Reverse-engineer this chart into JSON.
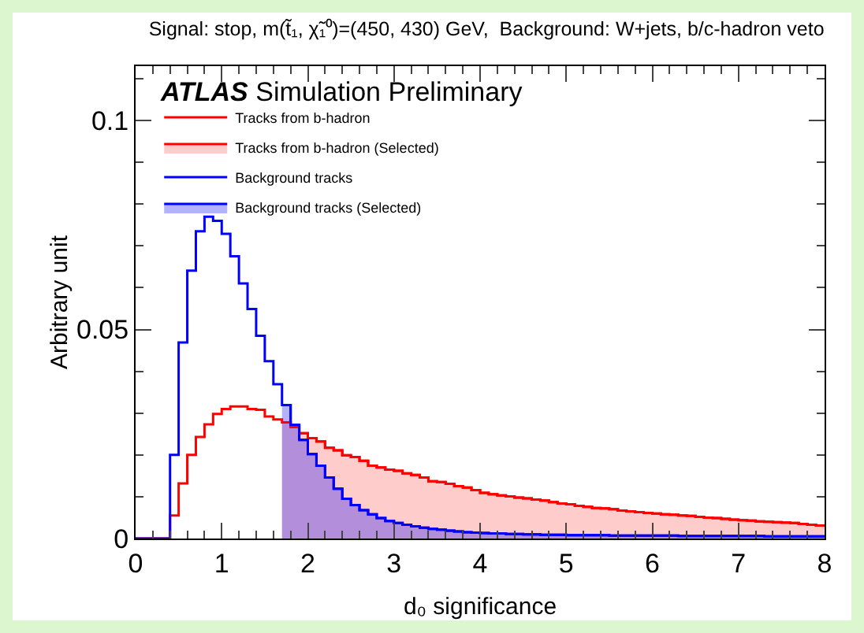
{
  "chart_data": {
    "type": "histogram",
    "title": "Signal: stop, m(t̃₁, χ̃₁⁰)=(450, 430) GeV,  Background: W+jets, b/c-hadron veto",
    "xlabel": "d₀ significance",
    "ylabel": "Arbitrary unit",
    "annotations": [
      "ATLAS Simulation Preliminary"
    ],
    "bins": [
      0,
      0.1,
      0.2,
      0.3,
      0.4,
      0.5,
      0.6,
      0.7,
      0.8,
      0.9,
      1,
      1.1,
      1.2,
      1.3,
      1.4,
      1.5,
      1.6,
      1.7,
      1.8,
      1.9,
      2,
      2.1,
      2.2,
      2.3,
      2.4,
      2.5,
      2.6,
      2.7,
      2.8,
      2.9,
      3,
      3.1,
      3.2,
      3.3,
      3.4,
      3.5,
      3.6,
      3.7,
      3.8,
      3.9,
      4,
      4.1,
      4.2,
      4.3,
      4.4,
      4.5,
      4.6,
      4.7,
      4.8,
      4.9,
      5,
      5.1,
      5.2,
      5.3,
      5.4,
      5.5,
      5.6,
      5.7,
      5.8,
      5.9,
      6,
      6.1,
      6.2,
      6.3,
      6.4,
      6.5,
      6.6,
      6.7,
      6.8,
      6.9,
      7,
      7.1,
      7.2,
      7.3,
      7.4,
      7.5,
      7.6,
      7.7,
      7.8,
      7.9,
      8
    ],
    "series": [
      {
        "name": "Tracks from b-hadron",
        "type": "histogram",
        "color": "#ff0000",
        "values": [
          0,
          0,
          0,
          0,
          0.0055,
          0.0132,
          0.02,
          0.0243,
          0.0273,
          0.0298,
          0.031,
          0.0316,
          0.0316,
          0.031,
          0.0308,
          0.0292,
          0.0285,
          0.0278,
          0.0267,
          0.0252,
          0.024,
          0.0232,
          0.0217,
          0.0211,
          0.0199,
          0.0195,
          0.0186,
          0.0174,
          0.017,
          0.0165,
          0.0162,
          0.0156,
          0.0152,
          0.0146,
          0.0137,
          0.0135,
          0.0131,
          0.0125,
          0.0122,
          0.0116,
          0.0109,
          0.0106,
          0.0103,
          0.0101,
          0.0098,
          0.0096,
          0.0093,
          0.0091,
          0.0087,
          0.0084,
          0.0082,
          0.0078,
          0.0076,
          0.0073,
          0.0072,
          0.007,
          0.0067,
          0.0065,
          0.0063,
          0.0061,
          0.006,
          0.0058,
          0.0057,
          0.0055,
          0.0054,
          0.0052,
          0.005,
          0.0049,
          0.0047,
          0.0045,
          0.0044,
          0.0043,
          0.0041,
          0.004,
          0.0039,
          0.0038,
          0.0037,
          0.0035,
          0.0033,
          0.0031
        ]
      },
      {
        "name": "Tracks from b-hadron (Selected)",
        "type": "area",
        "color": "#ff0000",
        "x": [
          1.7,
          1.8,
          1.9,
          2,
          2.1,
          2.2,
          2.3,
          2.4,
          2.5,
          2.6,
          2.7,
          2.8,
          2.9,
          3,
          3.1,
          3.2,
          3.3,
          3.4,
          3.5,
          3.6,
          3.7,
          3.8,
          3.9,
          4,
          4.1,
          4.2,
          4.3,
          4.4,
          4.5,
          4.6,
          4.7,
          4.8,
          4.9,
          5,
          5.1,
          5.2,
          5.3,
          5.4,
          5.5,
          5.6,
          5.7,
          5.8,
          5.9,
          6,
          6.1,
          6.2,
          6.3,
          6.4,
          6.5,
          6.6,
          6.7,
          6.8,
          6.9,
          7,
          7.1,
          7.2,
          7.3,
          7.4,
          7.5,
          7.6,
          7.7,
          7.8,
          7.9,
          8
        ],
        "values": [
          0.0278,
          0.0267,
          0.0252,
          0.024,
          0.0232,
          0.0217,
          0.0211,
          0.0199,
          0.0195,
          0.0186,
          0.0174,
          0.017,
          0.0165,
          0.0162,
          0.0156,
          0.0152,
          0.0146,
          0.0137,
          0.0135,
          0.0131,
          0.0125,
          0.0122,
          0.0116,
          0.0109,
          0.0106,
          0.0103,
          0.0101,
          0.0098,
          0.0096,
          0.0093,
          0.0091,
          0.0087,
          0.0084,
          0.0082,
          0.0078,
          0.0076,
          0.0073,
          0.0072,
          0.007,
          0.0067,
          0.0065,
          0.0063,
          0.0061,
          0.006,
          0.0058,
          0.0057,
          0.0055,
          0.0054,
          0.0052,
          0.005,
          0.0049,
          0.0047,
          0.0045,
          0.0044,
          0.0043,
          0.0041,
          0.004,
          0.0039,
          0.0038,
          0.0037,
          0.0035,
          0.0033,
          0.0031,
          0.0031
        ]
      },
      {
        "name": "Background tracks",
        "type": "histogram",
        "color": "#0000ff",
        "values": [
          0,
          0,
          0,
          0,
          0.02,
          0.0469,
          0.0641,
          0.0735,
          0.077,
          0.076,
          0.0729,
          0.0675,
          0.061,
          0.0549,
          0.0485,
          0.0424,
          0.0369,
          0.0319,
          0.0272,
          0.0236,
          0.0202,
          0.0174,
          0.0146,
          0.0119,
          0.0095,
          0.008,
          0.0068,
          0.0058,
          0.0049,
          0.0042,
          0.0037,
          0.0033,
          0.0029,
          0.0026,
          0.0023,
          0.0021,
          0.0019,
          0.0017,
          0.0015,
          0.0014,
          0.0013,
          0.0012,
          0.0012,
          0.0011,
          0.0011,
          0.001,
          0.001,
          0.0009,
          0.0009,
          0.0009,
          0.0008,
          0.0008,
          0.0008,
          0.0008,
          0.0008,
          0.0007,
          0.0007,
          0.0007,
          0.0007,
          0.0007,
          0.0007,
          0.0007,
          0.0007,
          0.0006,
          0.0006,
          0.0006,
          0.0006,
          0.0006,
          0.0006,
          0.0006,
          0.0006,
          0.0006,
          0.0006,
          0.0005,
          0.0005,
          0.0005,
          0.0005,
          0.0005,
          0.0005,
          0.0005
        ]
      },
      {
        "name": "Background tracks (Selected)",
        "type": "area",
        "color": "#0000ff",
        "x": [
          1.7,
          1.8,
          1.9,
          2,
          2.1,
          2.2,
          2.3,
          2.4,
          2.5,
          2.6,
          2.7,
          2.8,
          2.9,
          3,
          3.1,
          3.2,
          3.3,
          3.4,
          3.5,
          3.6,
          3.7,
          3.8,
          3.9,
          4,
          4.1,
          4.2,
          4.3,
          4.4,
          4.5,
          4.6,
          4.7,
          4.8,
          4.9,
          5,
          5.1,
          5.2,
          5.3,
          5.4,
          5.5,
          5.6,
          5.7,
          5.8,
          5.9,
          6,
          6.1,
          6.2,
          6.3,
          6.4,
          6.5,
          6.6,
          6.7,
          6.8,
          6.9,
          7,
          7.1,
          7.2,
          7.3,
          7.4,
          7.5,
          7.6,
          7.7,
          7.8,
          7.9,
          8
        ],
        "values": [
          0.0319,
          0.0272,
          0.0236,
          0.0202,
          0.0174,
          0.0146,
          0.0119,
          0.0095,
          0.008,
          0.0068,
          0.0058,
          0.0049,
          0.0042,
          0.0037,
          0.0033,
          0.0029,
          0.0026,
          0.0023,
          0.0021,
          0.0019,
          0.0017,
          0.0015,
          0.0014,
          0.0013,
          0.0012,
          0.0012,
          0.0011,
          0.0011,
          0.001,
          0.001,
          0.0009,
          0.0009,
          0.0009,
          0.0008,
          0.0008,
          0.0008,
          0.0008,
          0.0008,
          0.0007,
          0.0007,
          0.0007,
          0.0007,
          0.0007,
          0.0007,
          0.0007,
          0.0007,
          0.0006,
          0.0006,
          0.0006,
          0.0006,
          0.0006,
          0.0006,
          0.0006,
          0.0006,
          0.0006,
          0.0006,
          0.0005,
          0.0005,
          0.0005,
          0.0005,
          0.0005,
          0.0005,
          0.0005,
          0.0005
        ]
      }
    ],
    "xlim": [
      0,
      8
    ],
    "xticks": [
      0,
      1,
      2,
      3,
      4,
      5,
      6,
      7,
      8
    ],
    "ylim": [
      0,
      0.113
    ],
    "yticks": [
      0,
      0.05,
      0.1
    ],
    "legend": "top left",
    "grid": false
  }
}
